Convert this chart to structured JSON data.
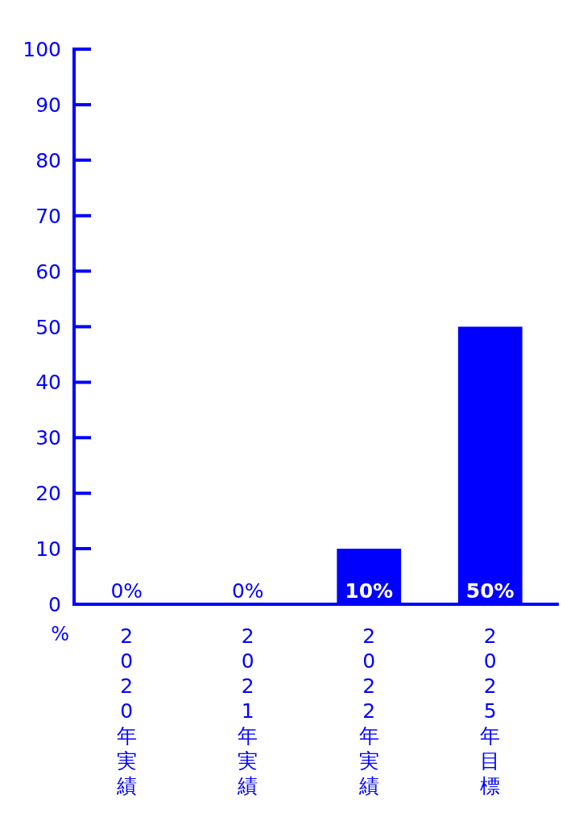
{
  "chart_data": {
    "type": "bar",
    "ylabel": "%",
    "categories": [
      "2020年実績",
      "2021年実績",
      "2022年実績",
      "2025年目標"
    ],
    "values": [
      0,
      0,
      10,
      50
    ],
    "value_labels": [
      "0%",
      "0%",
      "10%",
      "50%"
    ],
    "color": "#0000ff",
    "ylim": [
      0,
      100
    ],
    "yticks": [
      0,
      10,
      20,
      30,
      40,
      50,
      60,
      70,
      80,
      90,
      100
    ]
  }
}
